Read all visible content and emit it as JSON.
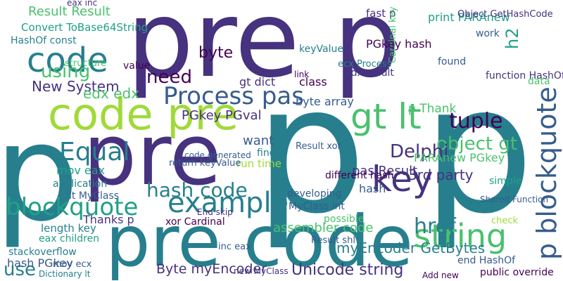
{
  "word_cloud": {
    "words": [
      "pre p",
      "p",
      "pre",
      "p p",
      "pre code",
      "code pre",
      "code",
      "Process pas",
      "gt lt",
      "key",
      "example",
      "blockquote",
      "string",
      "p blockquote",
      "tuple",
      "object gt",
      "Delphi",
      "hash code",
      "Equal",
      "need",
      "using",
      "byte",
      "Result Result",
      "Unicode string",
      "Byte myEncoder",
      "href",
      "use",
      "myEncoder GetBytes",
      "assembler code",
      "pas Result",
      "3rd party",
      "PARAnew PGkey",
      "New System",
      "edx edx",
      "Convert ToBase64String",
      "HashOf const",
      "fast p",
      "keyValue",
      "edx result",
      "Cardinal key",
      "print PARAnew",
      "Object GetHashCode",
      "ecx Process",
      "PGkey hash",
      "class",
      "byte array",
      "gt dict",
      "PGkey PGval",
      "p Thank",
      "want",
      "mov eax",
      "application",
      "lt MyClass",
      "Thanks p",
      "length key",
      "hash",
      "MyClass int",
      "developing",
      "xor Cardinal",
      "End skip",
      "eax children",
      "stackoverflow",
      "hash PGkey",
      "mov ecx",
      "Dictionary lt",
      "new MyClass",
      "public override",
      "Add new",
      "end HashOf",
      "possible",
      "Result shl",
      "inc eax",
      "run time",
      "return keyValue",
      "find",
      "code generated",
      "Result xor",
      "simple",
      "check",
      "Shared Function",
      "different hash",
      "h2",
      "function HashOf",
      "structure",
      "value",
      "data",
      "work",
      "found",
      "link",
      "eax inc"
    ]
  }
}
